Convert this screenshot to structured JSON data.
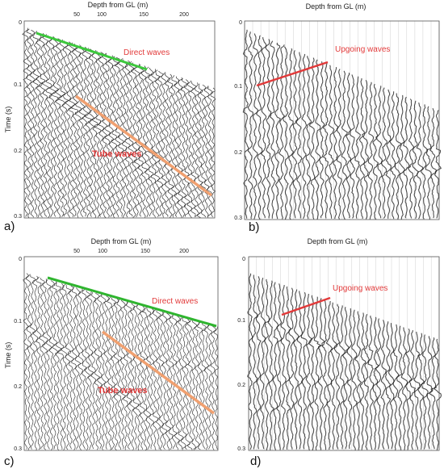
{
  "x_axis_title": "Depth from GL (m)",
  "y_axis_title": "Time (s)",
  "x_ticks": [
    "50",
    "100",
    "150",
    "200"
  ],
  "y_ticks": [
    "0",
    "0.1",
    "0.2",
    "0.3"
  ],
  "panels": [
    {
      "letter": "a)",
      "annotations": [
        "Direct waves",
        "Tube waves"
      ]
    },
    {
      "letter": "b)",
      "annotations": [
        "Upgoing waves"
      ]
    },
    {
      "letter": "c)",
      "annotations": [
        "Direct waves",
        "Tube waves"
      ]
    },
    {
      "letter": "d)",
      "annotations": [
        "Upgoing waves"
      ]
    }
  ],
  "colors": {
    "direct_waves_line": "#3cc83c",
    "tube_waves_line": "#f0a070",
    "upgoing_waves_line": "#e23a3a",
    "annotation_text": "#e23a3a"
  }
}
